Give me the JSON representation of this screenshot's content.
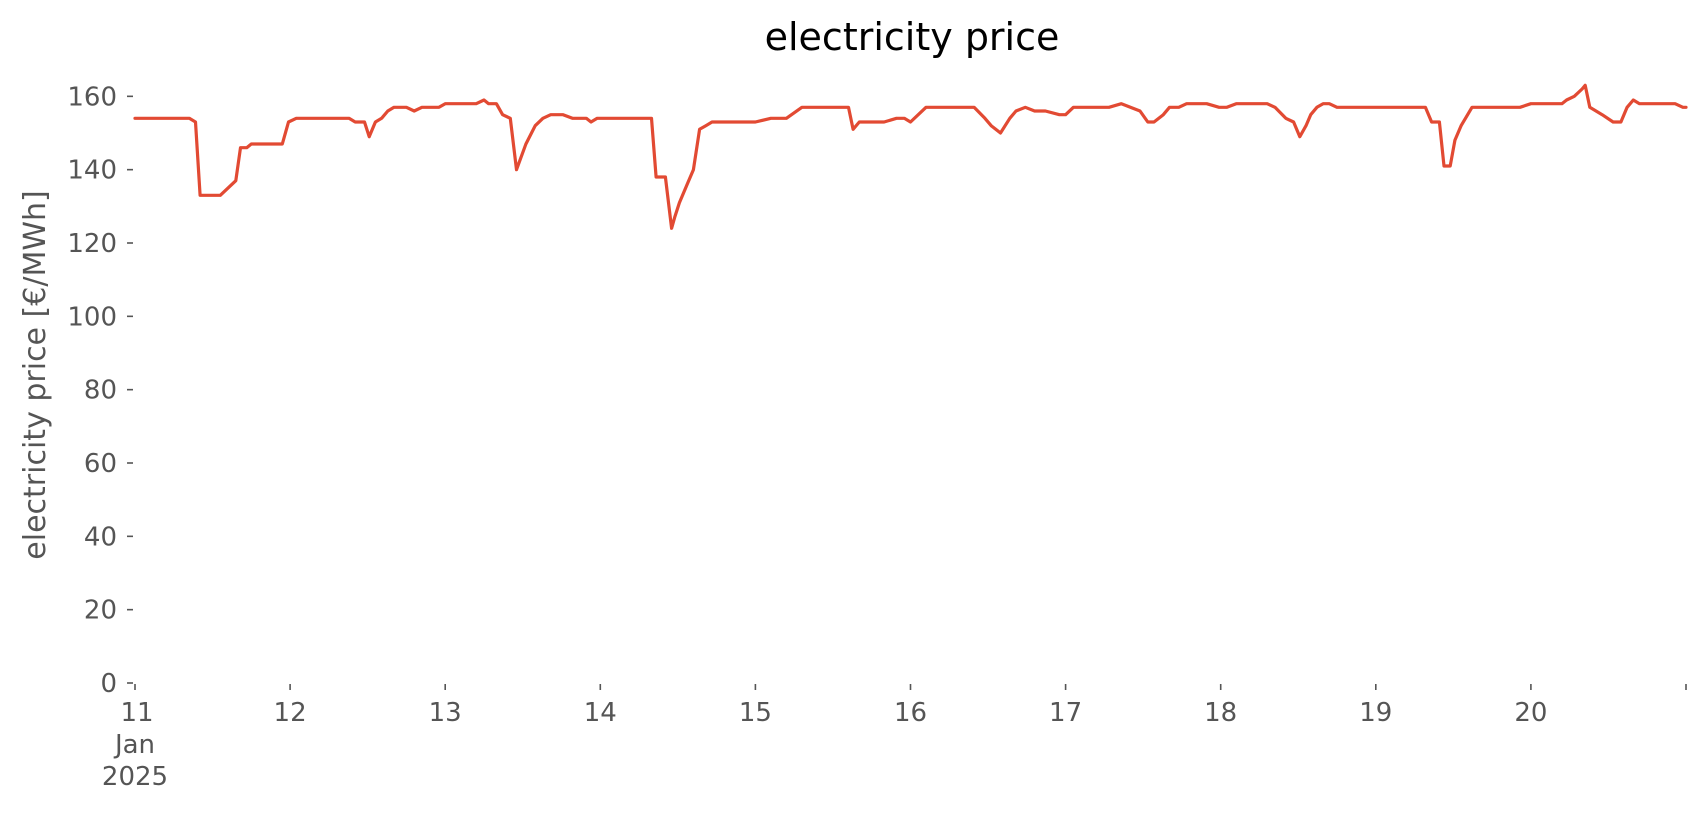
{
  "chart_data": {
    "type": "line",
    "title": "electricity price",
    "xlabel": "",
    "ylabel": "electricity price [€/MWh]",
    "x_unit": "days of January 2025",
    "xlim": [
      11,
      21
    ],
    "ylim": [
      0,
      165
    ],
    "grid": false,
    "legend": "none",
    "yticks": [
      0,
      20,
      40,
      60,
      80,
      100,
      120,
      140,
      160
    ],
    "xticks": [
      {
        "value": 11,
        "lines": [
          "11",
          "Jan",
          "2025"
        ]
      },
      {
        "value": 12,
        "lines": [
          "12"
        ]
      },
      {
        "value": 13,
        "lines": [
          "13"
        ]
      },
      {
        "value": 14,
        "lines": [
          "14"
        ]
      },
      {
        "value": 15,
        "lines": [
          "15"
        ]
      },
      {
        "value": 16,
        "lines": [
          "16"
        ]
      },
      {
        "value": 17,
        "lines": [
          "17"
        ]
      },
      {
        "value": 18,
        "lines": [
          "18"
        ]
      },
      {
        "value": 19,
        "lines": [
          "19"
        ]
      },
      {
        "value": 20,
        "lines": [
          "20"
        ]
      },
      {
        "value": 21,
        "lines": [
          ""
        ]
      }
    ],
    "series": [
      {
        "color": "#e24a33",
        "x": [
          11.0,
          11.35,
          11.39,
          11.42,
          11.55,
          11.65,
          11.68,
          11.72,
          11.75,
          11.95,
          11.99,
          12.04,
          12.1,
          12.38,
          12.42,
          12.48,
          12.51,
          12.55,
          12.59,
          12.63,
          12.67,
          12.75,
          12.8,
          12.85,
          12.96,
          13.0,
          13.08,
          13.2,
          13.25,
          13.28,
          13.33,
          13.37,
          13.42,
          13.46,
          13.52,
          13.58,
          13.63,
          13.68,
          13.72,
          13.76,
          13.82,
          13.91,
          13.94,
          13.98,
          14.04,
          14.33,
          14.36,
          14.42,
          14.46,
          14.48,
          14.51,
          14.56,
          14.6,
          14.64,
          14.68,
          14.72,
          14.76,
          15.0,
          15.1,
          15.2,
          15.3,
          15.6,
          15.63,
          15.67,
          15.72,
          15.83,
          15.91,
          15.96,
          16.0,
          16.1,
          16.33,
          16.41,
          16.48,
          16.52,
          16.58,
          16.64,
          16.68,
          16.74,
          16.8,
          16.87,
          16.96,
          17.0,
          17.05,
          17.12,
          17.18,
          17.22,
          17.28,
          17.36,
          17.48,
          17.53,
          17.57,
          17.63,
          17.67,
          17.73,
          17.78,
          17.84,
          17.91,
          17.99,
          18.04,
          18.1,
          18.3,
          18.35,
          18.42,
          18.47,
          18.51,
          18.55,
          18.58,
          18.62,
          18.66,
          18.7,
          18.75,
          18.8,
          18.87,
          19.0,
          19.1,
          19.32,
          19.36,
          19.41,
          19.44,
          19.48,
          19.51,
          19.55,
          19.62,
          19.72,
          19.8,
          19.93,
          20.0,
          20.12,
          20.2,
          20.23,
          20.28,
          20.33,
          20.35,
          20.38,
          20.46,
          20.53,
          20.58,
          20.62,
          20.66,
          20.7,
          20.78,
          20.88,
          20.93,
          20.98,
          21.0
        ],
        "y": [
          154,
          154,
          153,
          133,
          133,
          137,
          146,
          146,
          147,
          147,
          153,
          154,
          154,
          154,
          153,
          153,
          149,
          153,
          154,
          156,
          157,
          157,
          156,
          157,
          157,
          158,
          158,
          158,
          159,
          158,
          158,
          155,
          154,
          140,
          147,
          152,
          154,
          155,
          155,
          155,
          154,
          154,
          153,
          154,
          154,
          154,
          138,
          138,
          124,
          127,
          131,
          136,
          140,
          151,
          152,
          153,
          153,
          153,
          154,
          154,
          157,
          157,
          151,
          153,
          153,
          153,
          154,
          154,
          153,
          157,
          157,
          157,
          154,
          152,
          150,
          154,
          156,
          157,
          156,
          156,
          155,
          155,
          157,
          157,
          157,
          157,
          157,
          158,
          156,
          153,
          153,
          155,
          157,
          157,
          158,
          158,
          158,
          157,
          157,
          158,
          158,
          157,
          154,
          153,
          149,
          152,
          155,
          157,
          158,
          158,
          157,
          157,
          157,
          157,
          157,
          157,
          153,
          153,
          141,
          141,
          148,
          152,
          157,
          157,
          157,
          157,
          158,
          158,
          158,
          159,
          160,
          162,
          163,
          157,
          155,
          153,
          153,
          157,
          159,
          158,
          158,
          158,
          158,
          157,
          157
        ]
      }
    ]
  }
}
